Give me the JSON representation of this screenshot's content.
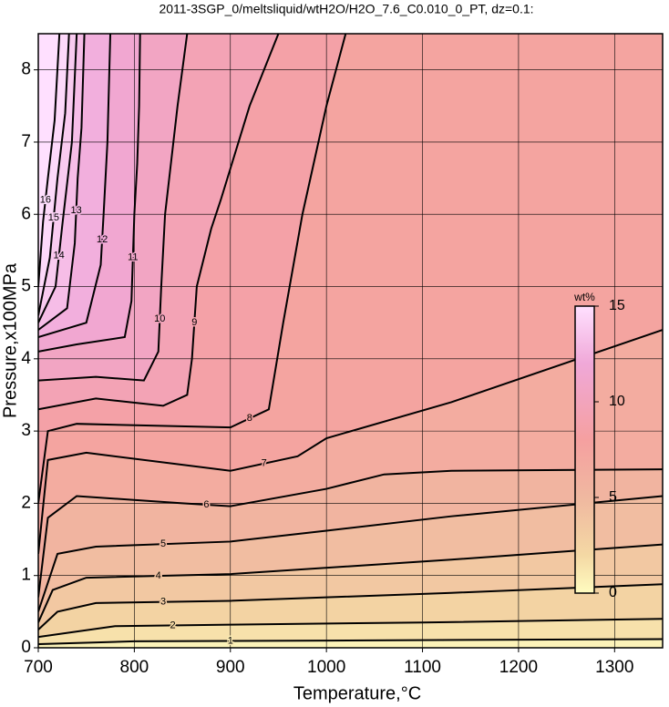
{
  "chart_data": {
    "type": "contour",
    "title": "2011-3SGP_0/meltsliquid/wtH2O/H2O_7.6_C0.010_0_PT, dz=0.1:",
    "x_label": "Temperature,°C",
    "y_label": "Pressure,x100MPa",
    "xlim": [
      700,
      1350
    ],
    "ylim": [
      0,
      8.5
    ],
    "xticks": [
      700,
      800,
      900,
      1000,
      1100,
      1200,
      1300
    ],
    "yticks": [
      0,
      1,
      2,
      3,
      4,
      5,
      6,
      7,
      8
    ],
    "grid": true,
    "colormap": [
      {
        "value": 0,
        "color": "#fffcc0"
      },
      {
        "value": 2,
        "color": "#f4d8a4"
      },
      {
        "value": 5,
        "color": "#f0b8a0"
      },
      {
        "value": 8,
        "color": "#f5a0a0"
      },
      {
        "value": 12,
        "color": "#f0a8d8"
      },
      {
        "value": 16,
        "color": "#ffe0ff"
      }
    ],
    "colorbar": {
      "label": "wt%",
      "lim": [
        0,
        15
      ],
      "ticks": [
        0,
        5,
        10,
        15
      ]
    },
    "contours": [
      {
        "level": 1,
        "x": [
          700,
          800,
          1000,
          1350
        ],
        "y": [
          0.05,
          0.09,
          0.1,
          0.12
        ]
      },
      {
        "level": 2,
        "x": [
          700,
          780,
          900,
          1100,
          1350
        ],
        "y": [
          0.15,
          0.3,
          0.32,
          0.35,
          0.4
        ]
      },
      {
        "level": 3,
        "x": [
          700,
          720,
          760,
          900,
          1130,
          1350
        ],
        "y": [
          0.25,
          0.5,
          0.62,
          0.65,
          0.76,
          0.88
        ]
      },
      {
        "level": 4,
        "x": [
          700,
          715,
          750,
          900,
          1130,
          1350
        ],
        "y": [
          0.35,
          0.8,
          0.97,
          1.02,
          1.22,
          1.43
        ]
      },
      {
        "level": 5,
        "x": [
          700,
          720,
          760,
          900,
          1000,
          1130,
          1350
        ],
        "y": [
          0.5,
          1.3,
          1.4,
          1.47,
          1.62,
          1.82,
          2.1
        ]
      },
      {
        "level": 6,
        "x": [
          700,
          710,
          740,
          850,
          900,
          1000,
          1060,
          1130,
          1350
        ],
        "y": [
          0.7,
          1.8,
          2.1,
          2.0,
          1.96,
          2.2,
          2.4,
          2.45,
          2.47
        ]
      },
      {
        "level": 7,
        "x": [
          700,
          710,
          750,
          900,
          970,
          1000,
          1130,
          1350
        ],
        "y": [
          1.3,
          2.6,
          2.7,
          2.45,
          2.65,
          2.9,
          3.4,
          4.4
        ]
      },
      {
        "level": 8,
        "x": [
          700,
          710,
          740,
          900,
          940,
          955,
          975,
          1000,
          1020
        ],
        "y": [
          2.0,
          3.0,
          3.1,
          3.05,
          3.3,
          4.5,
          6.0,
          7.5,
          8.5
        ]
      },
      {
        "level": 9,
        "x": [
          700,
          760,
          830,
          855,
          860,
          865,
          880,
          890,
          920,
          950
        ],
        "y": [
          3.3,
          3.45,
          3.35,
          3.5,
          4.0,
          5.0,
          5.8,
          6.2,
          7.5,
          8.5
        ]
      },
      {
        "level": 10,
        "x": [
          700,
          760,
          810,
          825,
          828,
          832,
          845,
          855
        ],
        "y": [
          3.7,
          3.75,
          3.7,
          4.1,
          5.0,
          6.0,
          7.5,
          8.5
        ]
      },
      {
        "level": 11,
        "x": [
          700,
          740,
          790,
          797,
          800,
          803,
          805,
          806
        ],
        "y": [
          4.1,
          4.2,
          4.3,
          4.8,
          6.0,
          6.7,
          7.5,
          8.5
        ]
      },
      {
        "level": 12,
        "x": [
          700,
          750,
          765,
          768,
          772,
          775
        ],
        "y": [
          4.3,
          4.5,
          5.3,
          6.0,
          7.0,
          8.5
        ]
      },
      {
        "level": 13,
        "x": [
          700,
          730,
          738,
          741,
          745,
          748
        ],
        "y": [
          4.4,
          4.7,
          5.6,
          6.5,
          7.2,
          8.5
        ]
      },
      {
        "level": 14,
        "x": [
          700,
          718,
          725,
          735,
          740
        ],
        "y": [
          4.5,
          5.0,
          5.85,
          7.0,
          8.5
        ]
      },
      {
        "level": 15,
        "x": [
          700,
          712,
          720,
          728,
          732
        ],
        "y": [
          4.6,
          5.4,
          6.5,
          7.4,
          8.5
        ]
      },
      {
        "level": 16,
        "x": [
          700,
          705,
          710,
          717,
          722
        ],
        "y": [
          5.0,
          5.9,
          6.5,
          7.3,
          8.5
        ]
      }
    ]
  }
}
